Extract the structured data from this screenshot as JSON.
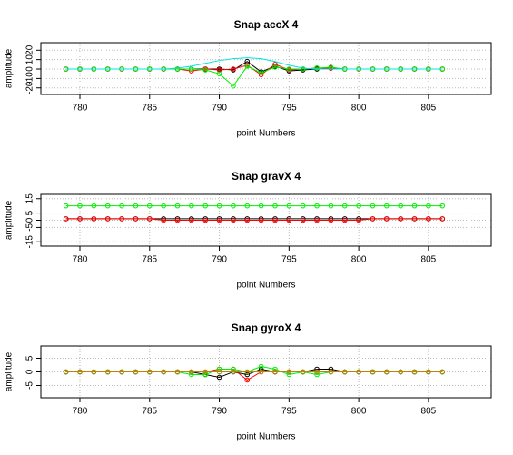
{
  "chart_data": [
    {
      "type": "line",
      "title": "Snap accX 4",
      "xlabel": "point Numbers",
      "ylabel": "amplitude",
      "x": [
        779,
        780,
        781,
        782,
        783,
        784,
        785,
        786,
        787,
        788,
        789,
        790,
        791,
        792,
        793,
        794,
        795,
        796,
        797,
        798,
        799,
        800,
        801,
        802,
        803,
        804,
        805,
        806
      ],
      "xlim": [
        777.2,
        809.5
      ],
      "xticks": [
        780,
        785,
        790,
        795,
        800,
        805
      ],
      "ylim": [
        -27,
        28
      ],
      "yticks": [
        -20,
        -10,
        0,
        10,
        20
      ],
      "grid": true,
      "series": [
        {
          "color": "#000000",
          "values": [
            0,
            0,
            0,
            0,
            0,
            0,
            0,
            0,
            0,
            0,
            0,
            0,
            -1,
            8,
            -3,
            3,
            -2,
            -1,
            0,
            1,
            0,
            0,
            0,
            0,
            0,
            0,
            0,
            0
          ]
        },
        {
          "color": "#ff0000",
          "values": [
            0,
            0,
            0,
            0,
            0,
            0,
            0,
            0,
            0,
            -2,
            0,
            -1,
            0,
            4,
            -6,
            5,
            -1,
            0,
            1,
            1,
            0,
            0,
            0,
            0,
            0,
            0,
            0,
            0
          ]
        },
        {
          "color": "#00ee00",
          "values": [
            0,
            0,
            0,
            0,
            0,
            0,
            0,
            0,
            0,
            0,
            -1,
            -5,
            -18,
            3,
            -4,
            2,
            0,
            0,
            1,
            2,
            0,
            0,
            0,
            0,
            0,
            0,
            0,
            0
          ]
        },
        {
          "color": "#00e5e5",
          "markers": false,
          "values": [
            0,
            0,
            0,
            0,
            0,
            0,
            0,
            0,
            1,
            3,
            6,
            9,
            11,
            12,
            11,
            8,
            4,
            1,
            0,
            0,
            0,
            0,
            0,
            0,
            0,
            0,
            0,
            0
          ]
        }
      ]
    },
    {
      "type": "line",
      "title": "Snap gravX 4",
      "xlabel": "point Numbers",
      "ylabel": "amplitude",
      "x": [
        779,
        780,
        781,
        782,
        783,
        784,
        785,
        786,
        787,
        788,
        789,
        790,
        791,
        792,
        793,
        794,
        795,
        796,
        797,
        798,
        799,
        800,
        801,
        802,
        803,
        804,
        805,
        806
      ],
      "xlim": [
        777.2,
        809.5
      ],
      "xticks": [
        780,
        785,
        790,
        795,
        800,
        805
      ],
      "ylim": [
        -18,
        18
      ],
      "yticks": [
        -15,
        -5,
        0,
        5,
        15
      ],
      "grid": true,
      "series": [
        {
          "color": "#00ee00",
          "values": [
            10,
            10,
            10,
            10,
            10,
            10,
            10,
            10,
            10,
            10,
            10,
            10,
            10,
            10,
            10,
            10,
            10,
            10,
            10,
            10,
            10,
            10,
            10,
            10,
            10,
            10,
            10,
            10
          ]
        },
        {
          "color": "#000000",
          "values": [
            1,
            1,
            1,
            1,
            1,
            1,
            1,
            1,
            1,
            1,
            1,
            1,
            1,
            1,
            1,
            1,
            1,
            1,
            1,
            1,
            1,
            1,
            1,
            1,
            1,
            1,
            1,
            1
          ]
        },
        {
          "color": "#ff0000",
          "values": [
            1,
            1,
            1,
            1,
            1,
            1,
            1,
            0,
            0,
            0,
            0,
            0,
            0,
            0,
            0,
            0,
            0,
            0,
            0,
            0,
            0,
            0,
            1,
            1,
            1,
            1,
            1,
            1
          ]
        }
      ]
    },
    {
      "type": "line",
      "title": "Snap gyroX 4",
      "xlabel": "point Numbers",
      "ylabel": "amplitude",
      "x": [
        779,
        780,
        781,
        782,
        783,
        784,
        785,
        786,
        787,
        788,
        789,
        790,
        791,
        792,
        793,
        794,
        795,
        796,
        797,
        798,
        799,
        800,
        801,
        802,
        803,
        804,
        805,
        806
      ],
      "xlim": [
        777.2,
        809.5
      ],
      "xticks": [
        780,
        785,
        790,
        795,
        800,
        805
      ],
      "ylim": [
        -9.5,
        9.5
      ],
      "yticks": [
        -5,
        0,
        5
      ],
      "grid": true,
      "series": [
        {
          "color": "#000000",
          "values": [
            0,
            0,
            0,
            0,
            0,
            0,
            0,
            0,
            0,
            0,
            -1,
            -2,
            0,
            -1,
            1,
            0,
            0,
            0,
            1,
            1,
            0,
            0,
            0,
            0,
            0,
            0,
            0,
            0
          ]
        },
        {
          "color": "#ff0000",
          "values": [
            0,
            0,
            0,
            0,
            0,
            0,
            0,
            0,
            0,
            0,
            0,
            1,
            1,
            -3,
            0,
            0,
            0,
            0,
            0,
            0,
            0,
            0,
            0,
            0,
            0,
            0,
            0,
            0
          ]
        },
        {
          "color": "#00ee00",
          "values": [
            0,
            0,
            0,
            0,
            0,
            0,
            0,
            0,
            0,
            -1,
            -1,
            1,
            1,
            0,
            2,
            1,
            -1,
            0,
            -1,
            0,
            0,
            0,
            0,
            0,
            0,
            0,
            0,
            0
          ]
        },
        {
          "color": "#b8860b",
          "values": [
            0,
            0,
            0,
            0,
            0,
            0,
            0,
            0,
            0,
            0,
            0,
            0,
            0,
            0,
            0,
            0,
            0,
            0,
            0,
            0,
            0,
            0,
            0,
            0,
            0,
            0,
            0,
            0
          ]
        }
      ]
    }
  ]
}
